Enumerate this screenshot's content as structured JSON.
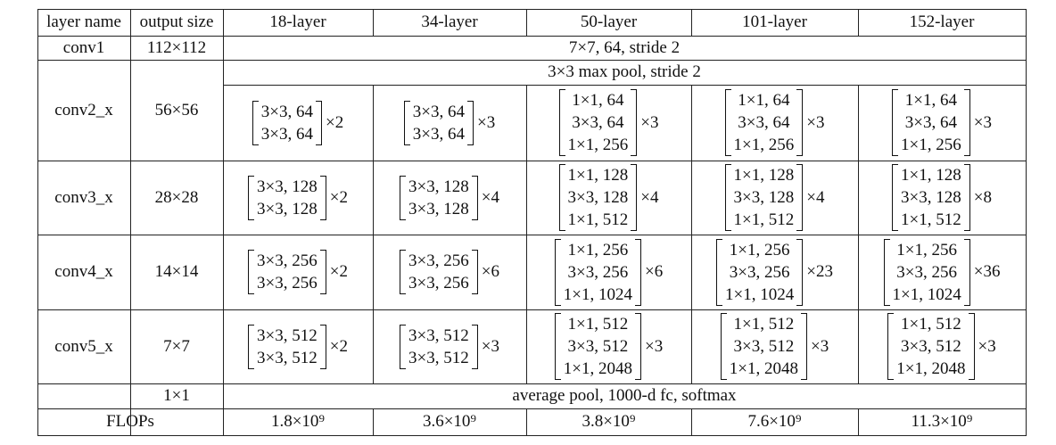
{
  "table": {
    "header": [
      "layer name",
      "output size",
      "18-layer",
      "34-layer",
      "50-layer",
      "101-layer",
      "152-layer"
    ],
    "rows": [
      {
        "layer": "conv1",
        "output": "112×112",
        "spanning": "7×7, 64, stride 2"
      },
      {
        "layer": "conv2_x",
        "output": "56×56",
        "spanning": "3×3 max pool, stride 2",
        "blocks": [
          {
            "lines": [
              "3×3, 64",
              "3×3, 64"
            ],
            "repeat": "×2"
          },
          {
            "lines": [
              "3×3, 64",
              "3×3, 64"
            ],
            "repeat": "×3"
          },
          {
            "lines": [
              "1×1, 64",
              "3×3, 64",
              "1×1, 256"
            ],
            "repeat": "×3"
          },
          {
            "lines": [
              "1×1, 64",
              "3×3, 64",
              "1×1, 256"
            ],
            "repeat": "×3"
          },
          {
            "lines": [
              "1×1, 64",
              "3×3, 64",
              "1×1, 256"
            ],
            "repeat": "×3"
          }
        ]
      },
      {
        "layer": "conv3_x",
        "output": "28×28",
        "blocks": [
          {
            "lines": [
              "3×3, 128",
              "3×3, 128"
            ],
            "repeat": "×2"
          },
          {
            "lines": [
              "3×3, 128",
              "3×3, 128"
            ],
            "repeat": "×4"
          },
          {
            "lines": [
              "1×1, 128",
              "3×3, 128",
              "1×1, 512"
            ],
            "repeat": "×4"
          },
          {
            "lines": [
              "1×1, 128",
              "3×3, 128",
              "1×1, 512"
            ],
            "repeat": "×4"
          },
          {
            "lines": [
              "1×1, 128",
              "3×3, 128",
              "1×1, 512"
            ],
            "repeat": "×8"
          }
        ]
      },
      {
        "layer": "conv4_x",
        "output": "14×14",
        "blocks": [
          {
            "lines": [
              "3×3, 256",
              "3×3, 256"
            ],
            "repeat": "×2"
          },
          {
            "lines": [
              "3×3, 256",
              "3×3, 256"
            ],
            "repeat": "×6"
          },
          {
            "lines": [
              "1×1, 256",
              "3×3, 256",
              "1×1, 1024"
            ],
            "repeat": "×6"
          },
          {
            "lines": [
              "1×1, 256",
              "3×3, 256",
              "1×1, 1024"
            ],
            "repeat": "×23"
          },
          {
            "lines": [
              "1×1, 256",
              "3×3, 256",
              "1×1, 1024"
            ],
            "repeat": "×36"
          }
        ]
      },
      {
        "layer": "conv5_x",
        "output": "7×7",
        "blocks": [
          {
            "lines": [
              "3×3, 512",
              "3×3, 512"
            ],
            "repeat": "×2"
          },
          {
            "lines": [
              "3×3, 512",
              "3×3, 512"
            ],
            "repeat": "×3"
          },
          {
            "lines": [
              "1×1, 512",
              "3×3, 512",
              "1×1, 2048"
            ],
            "repeat": "×3"
          },
          {
            "lines": [
              "1×1, 512",
              "3×3, 512",
              "1×1, 2048"
            ],
            "repeat": "×3"
          },
          {
            "lines": [
              "1×1, 512",
              "3×3, 512",
              "1×1, 2048"
            ],
            "repeat": "×3"
          }
        ]
      },
      {
        "output": "1×1",
        "spanning": "average pool, 1000-d fc, softmax"
      }
    ],
    "flops": {
      "label": "FLOPs",
      "values": [
        "1.8×10⁹",
        "3.6×10⁹",
        "3.8×10⁹",
        "7.6×10⁹",
        "11.3×10⁹"
      ]
    }
  }
}
